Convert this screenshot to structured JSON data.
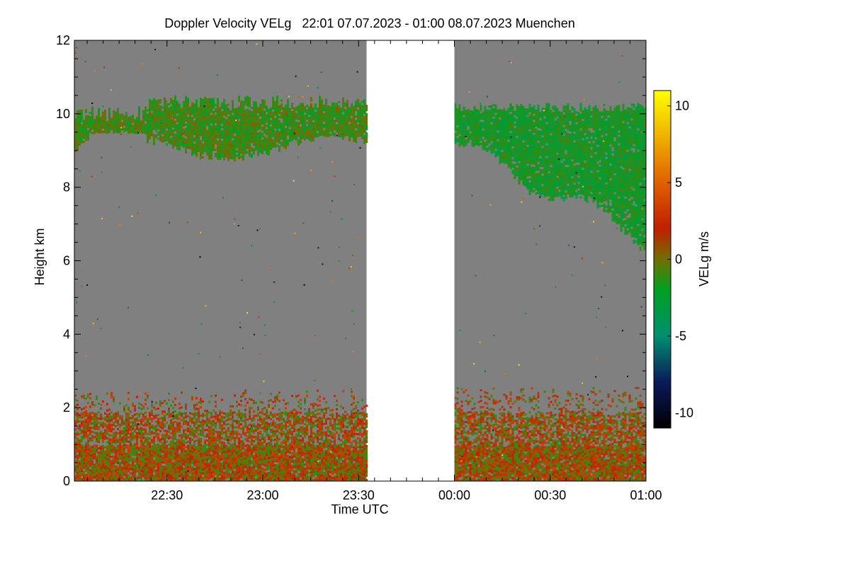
{
  "chart_data": {
    "type": "heatmap",
    "title": "Doppler Velocity VELg   22:01 07.07.2023 - 01:00 08.07.2023 Muenchen",
    "xlabel": "Time UTC",
    "ylabel": "Height km",
    "x_range_minutes_utc": [
      1321,
      1500
    ],
    "x_ticks": [
      {
        "minute": 1350,
        "label": "22:30"
      },
      {
        "minute": 1380,
        "label": "23:00"
      },
      {
        "minute": 1410,
        "label": "23:30"
      },
      {
        "minute": 1440,
        "label": "00:00"
      },
      {
        "minute": 1470,
        "label": "00:30"
      },
      {
        "minute": 1500,
        "label": "01:00"
      }
    ],
    "ylim": [
      0,
      12
    ],
    "y_ticks": [
      0,
      2,
      4,
      6,
      8,
      10,
      12
    ],
    "data_gap_minutes": [
      1412.5,
      1440
    ],
    "background_value_color": "#808080",
    "colorbar": {
      "label": "VELg m/s",
      "range": [
        -11,
        11
      ],
      "ticks": [
        {
          "value": 10,
          "label": "10"
        },
        {
          "value": 5,
          "label": "5"
        },
        {
          "value": 0,
          "label": "0"
        },
        {
          "value": -5,
          "label": "-5"
        },
        {
          "value": -10,
          "label": "-10"
        }
      ],
      "stops": [
        {
          "value": -11,
          "color": "#000000"
        },
        {
          "value": -8,
          "color": "#0a1a5a"
        },
        {
          "value": -5,
          "color": "#009070"
        },
        {
          "value": -2,
          "color": "#00a020"
        },
        {
          "value": 0,
          "color": "#707000"
        },
        {
          "value": 2,
          "color": "#c02000"
        },
        {
          "value": 5,
          "color": "#e06000"
        },
        {
          "value": 8,
          "color": "#f0b000"
        },
        {
          "value": 11,
          "color": "#ffff00"
        }
      ]
    },
    "features": [
      {
        "name": "cirrus-left",
        "minute_range": [
          1321,
          1412.5
        ],
        "height_km": [
          9.0,
          10.5
        ],
        "velocity": -1
      },
      {
        "name": "cirrus-right",
        "minute_range": [
          1440,
          1500
        ],
        "height_km": [
          6.2,
          10.3
        ],
        "velocity": -2
      },
      {
        "name": "boundary-layer-left",
        "minute_range": [
          1321,
          1412.5
        ],
        "height_km": [
          0,
          2.5
        ],
        "velocity": 1
      },
      {
        "name": "boundary-layer-right",
        "minute_range": [
          1440,
          1500
        ],
        "height_km": [
          0,
          2.6
        ],
        "velocity": 1
      }
    ]
  }
}
